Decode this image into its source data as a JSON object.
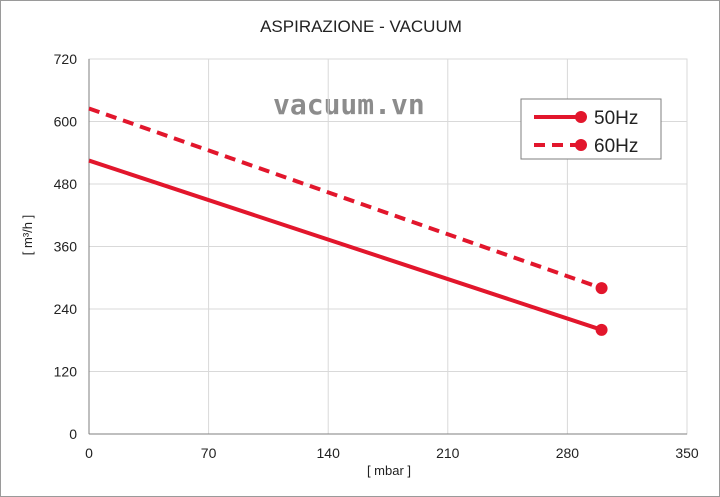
{
  "watermark": "vacuum.vn",
  "colors": {
    "series": "#e2162c",
    "grid": "#d9d9d9",
    "axis": "#7f7f7f",
    "text": "#222222"
  },
  "chart_data": {
    "type": "line",
    "title": "ASPIRAZIONE - VACUUM",
    "xlabel": "[ mbar ]",
    "ylabel": "[ m³/h ]",
    "xlim": [
      0,
      350
    ],
    "ylim": [
      0,
      720
    ],
    "xticks": [
      0,
      70,
      140,
      210,
      280,
      350
    ],
    "yticks": [
      0,
      120,
      240,
      360,
      480,
      600,
      720
    ],
    "grid": true,
    "legend_position": "top-right",
    "series": [
      {
        "name": "50Hz",
        "line_style": "solid",
        "x": [
          0,
          300
        ],
        "y": [
          525,
          200
        ]
      },
      {
        "name": "60Hz",
        "line_style": "dashed",
        "x": [
          0,
          300
        ],
        "y": [
          625,
          280
        ]
      }
    ]
  }
}
